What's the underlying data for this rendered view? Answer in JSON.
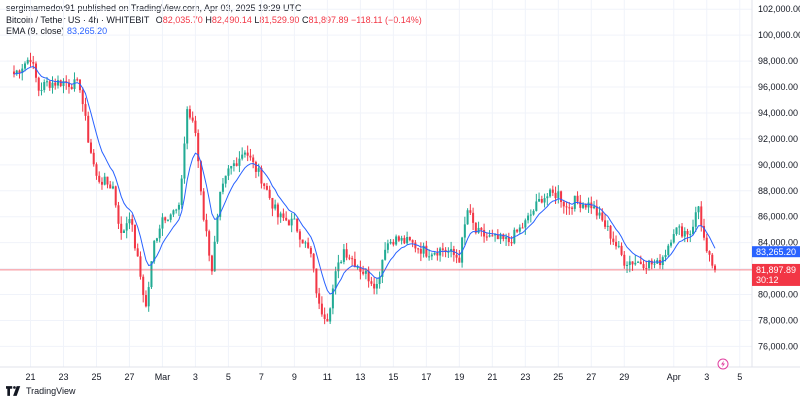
{
  "publisher": "sergimamedov91 published on TradingView.com, Apr 03, 2025 19:29 UTC",
  "legend": {
    "symbol": "Bitcoin / Tether US · 4h · WHITEBIT",
    "open_label": "O",
    "open": "82,035.70",
    "high_label": "H",
    "high": "82,490.14",
    "low_label": "L",
    "low": "81,529.90",
    "close_label": "C",
    "close": "81,897.89",
    "change": "−118.11 (−0.14%)",
    "ema_label": "EMA (9, close)",
    "ema_value": "83,265.20"
  },
  "footer": {
    "brand": "TradingView"
  },
  "colors": {
    "up": "#22ab94",
    "down": "#f23645",
    "ema": "#2962ff",
    "grid": "#f0f3fa",
    "price_line": "#f23645"
  },
  "price_badge": {
    "price": "81,897.89",
    "countdown": "30:12"
  },
  "ema_badge": "83,265.20",
  "lightning_icon": "lightning-icon",
  "chart_data": {
    "type": "candlestick",
    "interval": "4h",
    "y_ticks": [
      "102,000.00",
      "100,000.00",
      "98,000.00",
      "96,000.00",
      "94,000.00",
      "92,000.00",
      "90,000.00",
      "88,000.00",
      "86,000.00",
      "84,000.00",
      "82,000.00",
      "80,000.00",
      "78,000.00",
      "76,000.00"
    ],
    "ylim": [
      74800,
      102400
    ],
    "x_ticks": [
      "21",
      "23",
      "25",
      "27",
      "Mar",
      "3",
      "5",
      "7",
      "9",
      "11",
      "13",
      "15",
      "17",
      "19",
      "21",
      "23",
      "25",
      "27",
      "29",
      "Apr",
      "3",
      "5"
    ],
    "close_price": 81897.89,
    "ema_last": 83265.2,
    "series_points": [
      [
        "2025-02-20",
        97000
      ],
      [
        "2025-02-21",
        98300
      ],
      [
        "2025-02-21",
        95800
      ],
      [
        "2025-02-22",
        96300
      ],
      [
        "2025-02-23",
        96400
      ],
      [
        "2025-02-24",
        96100
      ],
      [
        "2025-02-24",
        92000
      ],
      [
        "2025-02-25",
        89000
      ],
      [
        "2025-02-26",
        88300
      ],
      [
        "2025-02-26",
        84500
      ],
      [
        "2025-02-27",
        86200
      ],
      [
        "2025-02-28",
        79000
      ],
      [
        "2025-02-28",
        84000
      ],
      [
        "2025-03-01",
        86000
      ],
      [
        "2025-03-02",
        86500
      ],
      [
        "2025-03-02",
        94300
      ],
      [
        "2025-03-03",
        92500
      ],
      [
        "2025-03-03",
        86000
      ],
      [
        "2025-03-04",
        82000
      ],
      [
        "2025-03-04",
        87500
      ],
      [
        "2025-03-05",
        89500
      ],
      [
        "2025-03-06",
        91200
      ],
      [
        "2025-03-06",
        90000
      ],
      [
        "2025-03-07",
        89000
      ],
      [
        "2025-03-08",
        86000
      ],
      [
        "2025-03-09",
        85500
      ],
      [
        "2025-03-10",
        83000
      ],
      [
        "2025-03-10",
        79000
      ],
      [
        "2025-03-11",
        78300
      ],
      [
        "2025-03-11",
        81500
      ],
      [
        "2025-03-12",
        83500
      ],
      [
        "2025-03-13",
        82000
      ],
      [
        "2025-03-14",
        80700
      ],
      [
        "2025-03-14",
        83800
      ],
      [
        "2025-03-15",
        84300
      ],
      [
        "2025-03-16",
        84000
      ],
      [
        "2025-03-17",
        83300
      ],
      [
        "2025-03-18",
        83500
      ],
      [
        "2025-03-19",
        82800
      ],
      [
        "2025-03-19",
        86500
      ],
      [
        "2025-03-20",
        84800
      ],
      [
        "2025-03-21",
        84300
      ],
      [
        "2025-03-22",
        84100
      ],
      [
        "2025-03-23",
        85500
      ],
      [
        "2025-03-24",
        87500
      ],
      [
        "2025-03-25",
        87800
      ],
      [
        "2025-03-25",
        86700
      ],
      [
        "2025-03-26",
        87200
      ],
      [
        "2025-03-27",
        86900
      ],
      [
        "2025-03-28",
        85000
      ],
      [
        "2025-03-29",
        82600
      ],
      [
        "2025-03-30",
        82500
      ],
      [
        "2025-03-31",
        82300
      ],
      [
        "2025-03-31",
        83300
      ],
      [
        "2025-04-01",
        85000
      ],
      [
        "2025-04-02",
        84800
      ],
      [
        "2025-04-02",
        86800
      ],
      [
        "2025-04-02",
        83000
      ],
      [
        "2025-04-03",
        82000
      ]
    ]
  }
}
